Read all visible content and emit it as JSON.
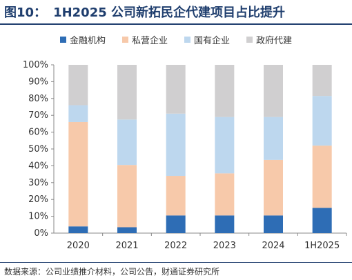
{
  "header": {
    "figure_number": "图10：",
    "title": "1H2025 公司新拓民企代建项目占比提升"
  },
  "footer": {
    "source": "数据来源：公司业绩推介材料，公司公告，财通证券研究所"
  },
  "colors": {
    "金融机构": "#2e6db5",
    "私营企业": "#f7c9aa",
    "国有企业": "#bdd7ee",
    "政府代建": "#d0cfd0",
    "title": "#1f3e6e"
  },
  "chart_data": {
    "type": "bar",
    "stacked": true,
    "percent": true,
    "categories": [
      "2020",
      "2021",
      "2022",
      "2023",
      "2024",
      "1H2025"
    ],
    "series": [
      {
        "name": "金融机构",
        "values": [
          4,
          3.5,
          10.5,
          10.5,
          10.5,
          15
        ]
      },
      {
        "name": "私营企业",
        "values": [
          62,
          37,
          23.5,
          25,
          33,
          37
        ]
      },
      {
        "name": "国有企业",
        "values": [
          10,
          27,
          37,
          33.5,
          25.5,
          29.5
        ]
      },
      {
        "name": "政府代建",
        "values": [
          24,
          32.5,
          29,
          31,
          31,
          18.5
        ]
      }
    ],
    "ylim": [
      0,
      100
    ],
    "yticks": [
      "0%",
      "10%",
      "20%",
      "30%",
      "40%",
      "50%",
      "60%",
      "70%",
      "80%",
      "90%",
      "100%"
    ],
    "legend_position": "top",
    "grid": false
  }
}
